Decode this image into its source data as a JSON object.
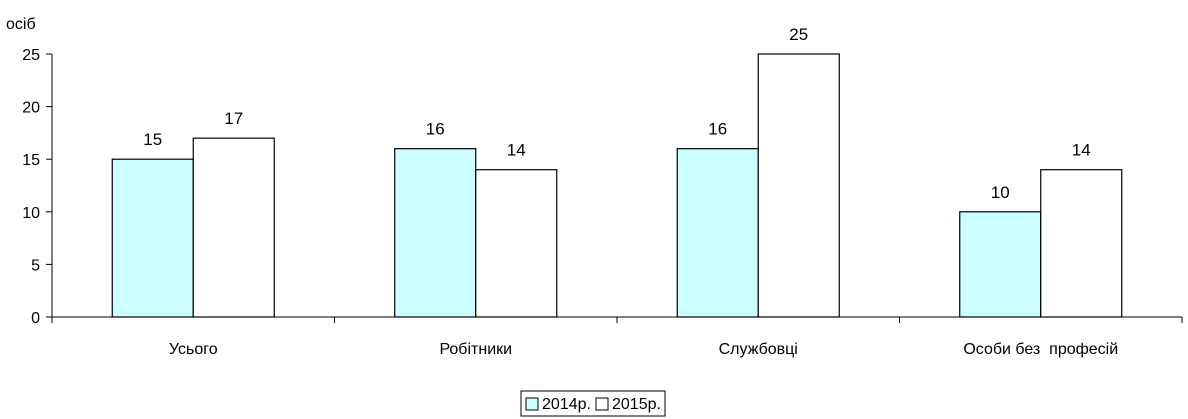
{
  "chart_data": {
    "type": "bar",
    "ylabel": "осіб",
    "categories": [
      "Усього",
      "Робітники",
      "Службовці",
      "Особи без  професій"
    ],
    "series": [
      {
        "name": "2014р.",
        "values": [
          15,
          16,
          16,
          10
        ],
        "color": "#CCFFFF"
      },
      {
        "name": "2015р.",
        "values": [
          17,
          14,
          25,
          14
        ],
        "color": "#FFFFFF"
      }
    ],
    "ylim": [
      0,
      25
    ],
    "yticks": [
      0,
      5,
      10,
      15,
      20,
      25
    ],
    "grid": false,
    "legend_position": "bottom-center"
  },
  "colors": {
    "axis": "#000000",
    "bar_stroke": "#000000"
  }
}
